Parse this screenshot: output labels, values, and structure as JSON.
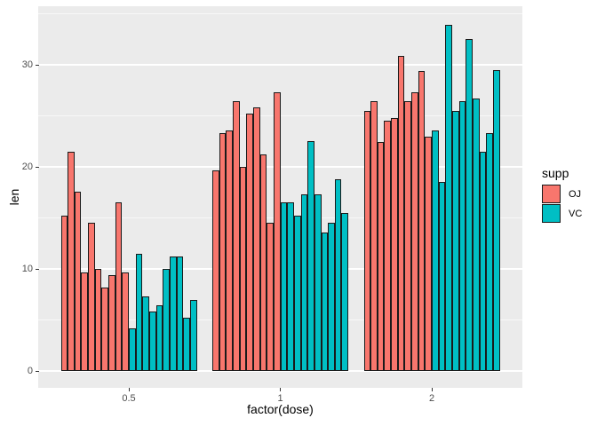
{
  "chart_data": {
    "type": "bar",
    "title": "",
    "xlabel": "factor(dose)",
    "ylabel": "len",
    "x_categories": [
      "0.5",
      "1",
      "2"
    ],
    "y_ticks": [
      "0",
      "10",
      "20",
      "30"
    ],
    "major_grid_values": [
      0,
      10,
      20,
      30
    ],
    "minor_grid_values": [
      5,
      15,
      25,
      35
    ],
    "ylim": [
      -1.7,
      35.7
    ],
    "grid": "on",
    "legend_position": "right",
    "legend": {
      "title": "supp",
      "entries": [
        {
          "label": "OJ",
          "color": "#F8766D"
        },
        {
          "label": "VC",
          "color": "#00BFC4"
        }
      ]
    },
    "groups": [
      {
        "category": "0.5",
        "series": [
          {
            "name": "OJ",
            "color": "#F8766D",
            "values": [
              15.2,
              21.5,
              17.6,
              9.7,
              14.5,
              10.0,
              8.2,
              9.4,
              16.5,
              9.7
            ]
          },
          {
            "name": "VC",
            "color": "#00BFC4",
            "values": [
              4.2,
              11.5,
              7.3,
              5.8,
              6.4,
              10.0,
              11.2,
              11.2,
              5.2,
              7.0
            ]
          }
        ]
      },
      {
        "category": "1",
        "series": [
          {
            "name": "OJ",
            "color": "#F8766D",
            "values": [
              19.7,
              23.3,
              23.6,
              26.4,
              20.0,
              25.2,
              25.8,
              21.2,
              14.5,
              27.3
            ]
          },
          {
            "name": "VC",
            "color": "#00BFC4",
            "values": [
              16.5,
              16.5,
              15.2,
              17.3,
              22.5,
              17.3,
              13.6,
              14.5,
              18.8,
              15.5
            ]
          }
        ]
      },
      {
        "category": "2",
        "series": [
          {
            "name": "OJ",
            "color": "#F8766D",
            "values": [
              25.5,
              26.4,
              22.4,
              24.5,
              24.8,
              30.9,
              26.4,
              27.3,
              29.4,
              23.0
            ]
          },
          {
            "name": "VC",
            "color": "#00BFC4",
            "values": [
              23.6,
              18.5,
              33.9,
              25.5,
              26.4,
              32.5,
              26.7,
              21.5,
              23.3,
              29.5
            ]
          }
        ]
      }
    ],
    "colors": {
      "panel_bg": "#EBEBEB",
      "grid": "#FFFFFF",
      "bar_border": "#1A1A1A",
      "tick_text": "#4D4D4D",
      "axis_title": "#000000",
      "fill_oj": "#F8766D",
      "fill_vc": "#00BFC4"
    }
  }
}
